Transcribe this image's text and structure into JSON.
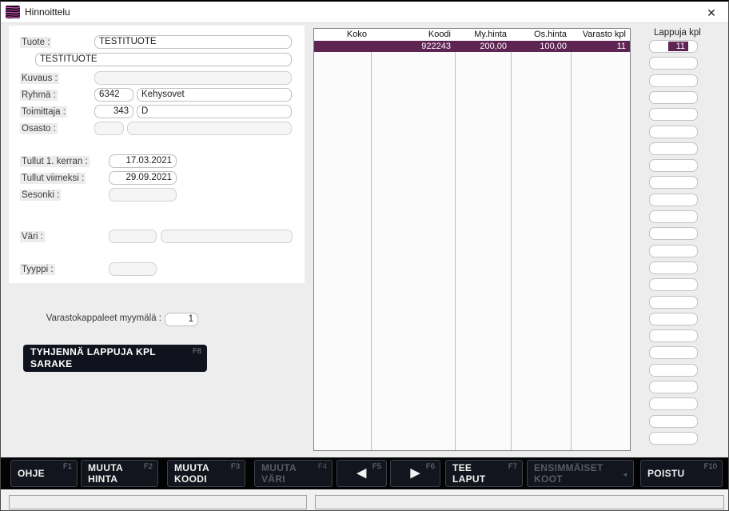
{
  "window": {
    "title": "Hinnoittelu",
    "close_icon": "✕"
  },
  "form": {
    "tuote_label": "Tuote :",
    "tuote_value": "TESTITUOTE",
    "tuote2_value": "TESTITUOTE",
    "kuvaus_label": "Kuvaus :",
    "kuvaus_value": "",
    "ryhma_label": "Ryhmä :",
    "ryhma_code": "6342",
    "ryhma_name": "Kehysovet",
    "toimittaja_label": "Toimittaja :",
    "toimittaja_code": "343",
    "toimittaja_name": "D",
    "osasto_label": "Osasto :",
    "osasto_code": "",
    "osasto_name": "",
    "tullut1_label": "Tullut 1. kerran :",
    "tullut1_value": "17.03.2021",
    "tullut2_label": "Tullut viimeksi :",
    "tullut2_value": "29.09.2021",
    "sesonki_label": "Sesonki :",
    "sesonki_value": "",
    "vari_label": "Väri :",
    "vari_code": "",
    "vari_name": "",
    "tyyppi_label": "Tyyppi :",
    "tyyppi_value": ""
  },
  "varasto": {
    "label": "Varastokappaleet myymälä :",
    "value": "1"
  },
  "clear_button": {
    "label": "TYHJENNÄ LAPPUJA KPL\nSARAKE",
    "fkey": "F8"
  },
  "table": {
    "columns": [
      "Koko",
      "Koodi",
      "My.hinta",
      "Os.hinta",
      "Varasto kpl"
    ],
    "rows": [
      [
        "",
        "922243",
        "200,00",
        "100,00",
        "11"
      ]
    ]
  },
  "lappuja": {
    "header": "Lappuja kpl",
    "first_value": "11",
    "box_count": 24
  },
  "toolbar": {
    "buttons": [
      {
        "label": "OHJE",
        "fkey": "F1",
        "disabled": false
      },
      {
        "label": "MUUTA\nHINTA",
        "fkey": "F2",
        "disabled": false
      },
      {
        "label": "MUUTA\nKOODI",
        "fkey": "F3",
        "disabled": false
      },
      {
        "label": "MUUTA\nVÄRI",
        "fkey": "F4",
        "disabled": true
      },
      {
        "label": "◀",
        "fkey": "F5",
        "disabled": false
      },
      {
        "label": "▶",
        "fkey": "F6",
        "disabled": false
      },
      {
        "label": "TEE\nLAPUT",
        "fkey": "F7",
        "disabled": false
      },
      {
        "label": "ENSIMMÄISET\nKOOT",
        "fkey": "",
        "arrow": "◂",
        "disabled": true
      },
      {
        "label": "POISTU",
        "fkey": "F10",
        "disabled": false
      }
    ]
  },
  "colors": {
    "selection_purple": "#5e2452",
    "icon_magenta": "#d94fc0",
    "button_dark": "#12151d",
    "toolbar_black": "#030303"
  }
}
